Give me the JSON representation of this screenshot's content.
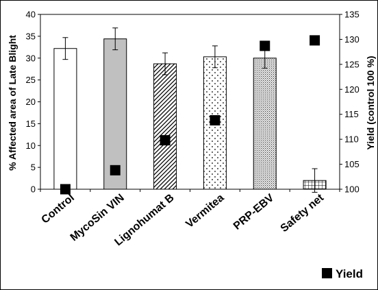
{
  "chart_data": {
    "type": "bar",
    "categories": [
      "Control",
      "MycoSin VIN",
      "Lignohumat B",
      "Vermitea",
      "PRP-EBV",
      "Safety net"
    ],
    "series": [
      {
        "axis": "left",
        "values": [
          32.2,
          34.4,
          28.7,
          30.3,
          30.0,
          2.0
        ],
        "error": [
          2.5,
          2.5,
          2.5,
          2.5,
          2.3,
          2.7
        ],
        "fills": [
          "white",
          "gray",
          "diagonal-hatch",
          "dots",
          "fine-dots",
          "grid"
        ]
      },
      {
        "name": "Yield",
        "axis": "right",
        "marker": "square",
        "values": [
          100,
          103.8,
          109.8,
          113.8,
          128.7,
          129.8
        ]
      }
    ],
    "ylabel": "% Affected area of Late Blight",
    "y2label": "Yield (control 100 %)",
    "ylim": [
      0,
      40
    ],
    "y2lim": [
      100,
      135
    ],
    "yticks": [
      "0",
      "5",
      "10",
      "15",
      "20",
      "25",
      "30",
      "35",
      "40"
    ],
    "y2ticks": [
      "100",
      "105",
      "110",
      "115",
      "120",
      "125",
      "130",
      "135"
    ],
    "legend": {
      "entries": [
        "Yield"
      ],
      "placement": "bottom-right"
    },
    "grid": false
  }
}
